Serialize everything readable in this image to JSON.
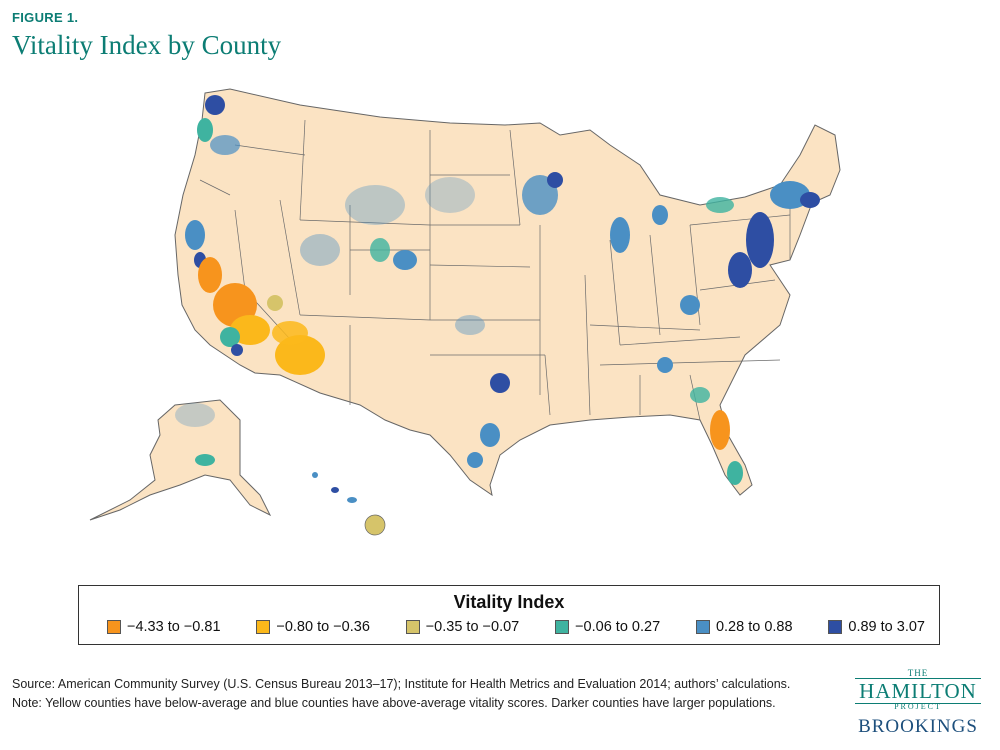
{
  "figure": {
    "label": "FIGURE 1.",
    "title": "Vitality Index by County"
  },
  "legend": {
    "title": "Vitality Index",
    "items": [
      {
        "label": "−4.33 to −0.81",
        "color": "#f7941d"
      },
      {
        "label": "−0.80 to −0.36",
        "color": "#fbb81b"
      },
      {
        "label": "−0.35 to −0.07",
        "color": "#d6c46a"
      },
      {
        "label": "−0.06 to 0.27",
        "color": "#3fb3a0"
      },
      {
        "label": "0.28 to 0.88",
        "color": "#4a8fc4"
      },
      {
        "label": "0.89 to 3.07",
        "color": "#2e4ea3"
      }
    ]
  },
  "notes": {
    "source": "Source: American Community Survey (U.S. Census Bureau 2013–17); Institute for Health Metrics and Evaluation 2014; authors’ calculations.",
    "note": "Note: Yellow counties have below-average and blue counties have above-average vitality scores. Darker counties have larger populations."
  },
  "logo": {
    "the": "THE",
    "hamilton": "HAMILTON",
    "project": "PROJECT",
    "brookings": "BROOKINGS"
  }
}
